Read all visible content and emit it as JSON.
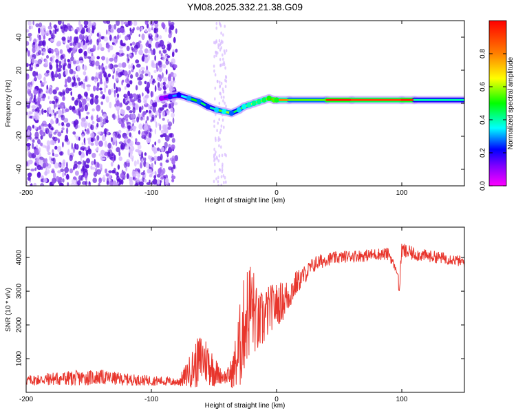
{
  "title": "YM08.2025.332.21.38.G09",
  "chart_data": [
    {
      "type": "heatmap",
      "name": "spectrogram",
      "xlabel": "Height of straight line (km)",
      "ylabel": "Frequency (Hz)",
      "xlim": [
        -200,
        150
      ],
      "ylim": [
        -50,
        50
      ],
      "xticks": [
        -200,
        -100,
        0,
        100
      ],
      "yticks": [
        -40,
        -20,
        0,
        20,
        40
      ],
      "noise_region_x": [
        -200,
        -80
      ],
      "ridge": {
        "x": [
          -92,
          -85,
          -78,
          -70,
          -62,
          -55,
          -48,
          -42,
          -36,
          -30,
          -26,
          -22,
          -18,
          -14,
          -10,
          -6,
          -2,
          0,
          10,
          40,
          60,
          100,
          110,
          150
        ],
        "y": [
          3,
          4,
          5,
          3,
          1,
          -2,
          -4,
          -5,
          -6,
          -4,
          -2,
          -1,
          0,
          1,
          2,
          3,
          2,
          2,
          2,
          2,
          2,
          2,
          2,
          2
        ],
        "amplitude": [
          0.15,
          0.3,
          0.35,
          0.5,
          0.45,
          0.4,
          0.55,
          0.6,
          0.45,
          0.55,
          0.6,
          0.65,
          0.7,
          0.7,
          0.75,
          0.85,
          0.9,
          0.8,
          0.55,
          0.95,
          0.9,
          0.95,
          0.4,
          0.9
        ]
      },
      "colorbar": {
        "label": "Normalized spectral amplitude",
        "range": [
          0,
          1
        ],
        "ticks": [
          "0.0",
          "0.2",
          "0.4",
          "0.6",
          "0.8"
        ]
      }
    },
    {
      "type": "line",
      "name": "snr",
      "xlabel": "Height of straight line (km)",
      "ylabel": "SNR (10 * v/v)",
      "xlim": [
        -200,
        150
      ],
      "ylim": [
        0,
        4900
      ],
      "xticks": [
        -200,
        -100,
        0,
        100
      ],
      "yticks": [
        1000,
        2000,
        3000,
        4000
      ],
      "color": "#e8352c",
      "series": [
        {
          "name": "SNR",
          "x": [
            -200,
            -180,
            -160,
            -140,
            -120,
            -100,
            -90,
            -80,
            -75,
            -70,
            -65,
            -60,
            -55,
            -50,
            -45,
            -40,
            -35,
            -30,
            -25,
            -20,
            -15,
            -10,
            -5,
            0,
            5,
            10,
            15,
            20,
            25,
            30,
            40,
            50,
            60,
            70,
            80,
            90,
            98,
            100,
            110,
            120,
            130,
            140,
            150
          ],
          "values": [
            350,
            400,
            420,
            450,
            380,
            350,
            330,
            300,
            400,
            600,
            800,
            1000,
            900,
            650,
            500,
            450,
            600,
            1200,
            2200,
            2600,
            2000,
            2200,
            2500,
            2600,
            2700,
            2900,
            3200,
            3400,
            3600,
            3800,
            3950,
            4000,
            4050,
            4050,
            4100,
            4100,
            3400,
            4200,
            4100,
            4050,
            4000,
            3950,
            3850
          ],
          "noise": [
            150,
            200,
            230,
            220,
            180,
            150,
            140,
            120,
            250,
            450,
            700,
            800,
            700,
            500,
            250,
            200,
            500,
            1300,
            1500,
            1500,
            900,
            900,
            700,
            650,
            600,
            500,
            400,
            300,
            250,
            250,
            200,
            180,
            180,
            180,
            180,
            200,
            0,
            250,
            200,
            180,
            180,
            170,
            160
          ]
        }
      ]
    }
  ]
}
